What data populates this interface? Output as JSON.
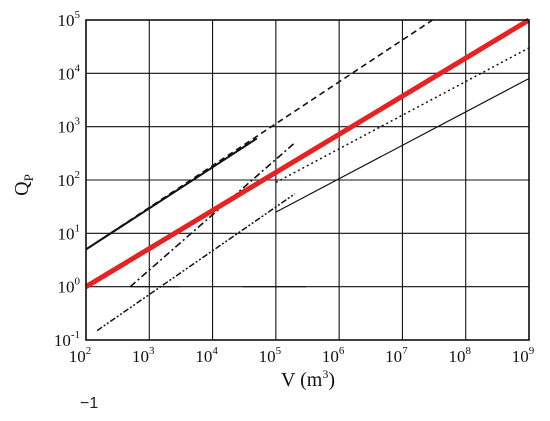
{
  "chart_data": {
    "type": "line",
    "title": "",
    "x_scale": "log",
    "y_scale": "log",
    "xlim": [
      100,
      1000000000
    ],
    "ylim": [
      0.1,
      100000
    ],
    "grid": true,
    "x_ticks": [
      {
        "base": "10",
        "exp": "2"
      },
      {
        "base": "10",
        "exp": "3"
      },
      {
        "base": "10",
        "exp": "4"
      },
      {
        "base": "10",
        "exp": "5"
      },
      {
        "base": "10",
        "exp": "6"
      },
      {
        "base": "10",
        "exp": "7"
      },
      {
        "base": "10",
        "exp": "8"
      },
      {
        "base": "10",
        "exp": "9"
      }
    ],
    "y_ticks": [
      {
        "base": "10",
        "exp": "-1"
      },
      {
        "base": "10",
        "exp": "0"
      },
      {
        "base": "10",
        "exp": "1"
      },
      {
        "base": "10",
        "exp": "2"
      },
      {
        "base": "10",
        "exp": "3"
      },
      {
        "base": "10",
        "exp": "4"
      },
      {
        "base": "10",
        "exp": "5"
      }
    ],
    "xlabel": {
      "main": "V (m",
      "sup": "3",
      "close": ")"
    },
    "ylabel": {
      "main": "Q",
      "sub": "P"
    },
    "series": [
      {
        "style": "solid-thick",
        "color": "#e32424",
        "x": [
          100,
          1000000000
        ],
        "y": [
          1,
          100000
        ]
      },
      {
        "style": "dashed",
        "color": "#111111",
        "x": [
          100,
          30000000
        ],
        "y": [
          5,
          100000
        ]
      },
      {
        "style": "solid",
        "color": "#111111",
        "x": [
          100,
          50000
        ],
        "y": [
          5,
          600
        ]
      },
      {
        "style": "dash-dot",
        "color": "#111111",
        "x": [
          500,
          200000
        ],
        "y": [
          1,
          500
        ]
      },
      {
        "style": "dash-dot-dot",
        "color": "#111111",
        "x": [
          150,
          200000
        ],
        "y": [
          0.15,
          55
        ]
      },
      {
        "style": "dotted",
        "color": "#111111",
        "x": [
          100000,
          1000000000
        ],
        "y": [
          90,
          30000
        ]
      },
      {
        "style": "solid-thin",
        "color": "#111111",
        "x": [
          100000,
          1000000000
        ],
        "y": [
          25,
          8000
        ]
      },
      {
        "style": "solid-thin",
        "color": "#111111",
        "x": [
          500,
          3000
        ],
        "y": [
          1,
          1
        ]
      },
      {
        "style": "solid-thin",
        "color": "#111111",
        "x": [
          30000,
          300000
        ],
        "y": [
          1,
          1
        ]
      }
    ]
  },
  "footnote": "−1"
}
